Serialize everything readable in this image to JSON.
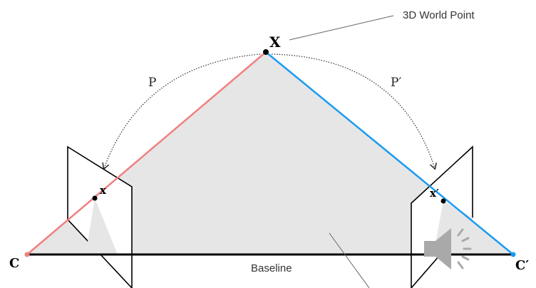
{
  "diagram": {
    "world_point_label": "X",
    "world_point_caption": "3D World Point",
    "projection_left_label": "P",
    "projection_right_label": "P′",
    "image_point_left_label": "x",
    "image_point_right_label": "x′",
    "camera_left_label": "C",
    "camera_right_label": "C′",
    "baseline_label": "Baseline"
  },
  "colors": {
    "left_ray": "#f08080",
    "right_ray": "#1a9bf0",
    "plane_fill": "#e6e6e6",
    "speaker_icon": "#a9a9a9"
  },
  "icons": {
    "audio": "speaker-icon"
  }
}
